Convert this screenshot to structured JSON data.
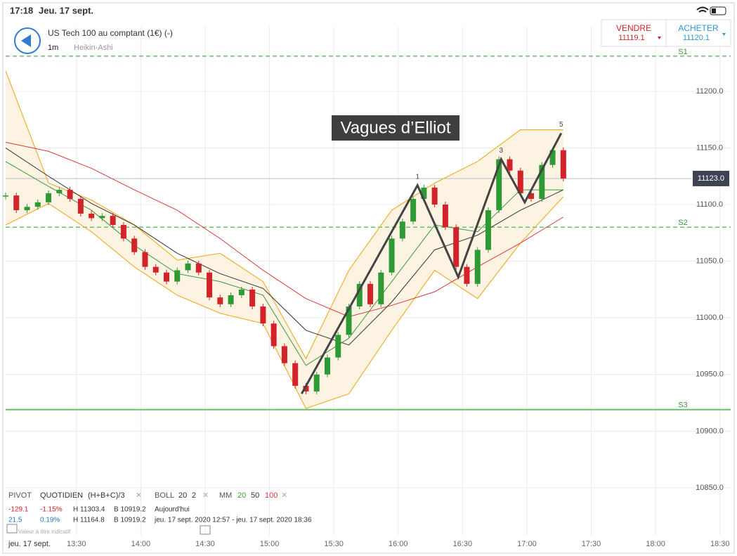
{
  "status_bar": {
    "time": "17:18",
    "date": "Jeu. 17 sept."
  },
  "header": {
    "instrument": "US Tech 100 au comptant (1€) (-)",
    "interval": "1m",
    "chart_style": "Heikin-Ashi",
    "sell_label": "VENDRE",
    "sell_price": "11119.1",
    "buy_label": "ACHETER",
    "buy_price": "11120.1"
  },
  "legend_panel": {
    "pivot": "PIVOT",
    "pivot_mode": "QUOTIDIEN",
    "pivot_formula": "(H+B+C)/3",
    "boll": "BOLL",
    "boll_period": "20",
    "boll_dev": "2",
    "mm": "MM",
    "mm_fast": "20",
    "mm_mid": "50",
    "mm_slow": "100",
    "rows": [
      [
        "-129.1",
        "-1.15%",
        "H 11303.4",
        "B 10919.2",
        "Aujourd'hui"
      ],
      [
        "21.5",
        "0.19%",
        "H 11164.8",
        "B 10919.2",
        "jeu. 17 sept. 2020 12:57 - jeu. 17 sept. 2020 18:36"
      ]
    ],
    "note": "Valeur à titre indicatif",
    "day_label": "jeu. 17 sept."
  },
  "chart_data": {
    "type": "candlestick",
    "title": "Vagues d’Elliot",
    "x": [
      777,
      782,
      787,
      792,
      797,
      802,
      807,
      812,
      817,
      822,
      827,
      832,
      837,
      842,
      847,
      852,
      857,
      862,
      867,
      872,
      877,
      882,
      887,
      892,
      897,
      902,
      907,
      912,
      917,
      922,
      927,
      932,
      937,
      942,
      947,
      952,
      957,
      962,
      967,
      972,
      977,
      982,
      987,
      992,
      997,
      1002,
      1007,
      1012,
      1017,
      1022,
      1027,
      1032,
      1037
    ],
    "values": [
      11108,
      11095,
      11098,
      11102,
      11110,
      11113,
      11105,
      11092,
      11088,
      11090,
      11082,
      11070,
      11058,
      11045,
      11040,
      11032,
      11042,
      11048,
      11040,
      11018,
      11012,
      11020,
      11025,
      11010,
      10995,
      10975,
      10960,
      10940,
      10935,
      10950,
      10965,
      10985,
      11010,
      11030,
      11012,
      11040,
      11070,
      11085,
      11105,
      11115,
      11100,
      11080,
      11045,
      11030,
      11060,
      11095,
      11140,
      11130,
      11110,
      11105,
      11135,
      11148,
      11123
    ],
    "up_color": "#2e9a35",
    "down_color": "#d3232a",
    "indicators": {
      "x": [
        777,
        797,
        817,
        837,
        857,
        877,
        897,
        917,
        937,
        957,
        977,
        997,
        1017,
        1037
      ],
      "boll_upper": [
        11218,
        11119,
        11104,
        11082,
        11051,
        11057,
        11032,
        10964,
        11042,
        11095,
        11119,
        11138,
        11166,
        11166
      ],
      "boll_lower": [
        11082,
        11101,
        11076,
        11045,
        11020,
        11004,
        10995,
        10920,
        10933,
        10989,
        11042,
        11017,
        11066,
        11107
      ],
      "mm20": [
        11138,
        11116,
        11095,
        11064,
        11039,
        11032,
        11020,
        10958,
        10982,
        11032,
        11082,
        11076,
        11113,
        11113
      ],
      "mm50": [
        11150,
        11125,
        11101,
        11082,
        11057,
        11039,
        11026,
        10989,
        10976,
        11014,
        11060,
        11073,
        11095,
        11113
      ],
      "mm100": [
        11155,
        11147,
        11132,
        11113,
        11095,
        11070,
        11042,
        11017,
        11001,
        11011,
        11023,
        11045,
        11066,
        11089
      ],
      "boll_color": "#f0b030",
      "mm20_color": "#3a9a3a",
      "mm50_color": "#333333",
      "mm100_color": "#d83a3a"
    },
    "waves": {
      "x": [
        915,
        969,
        988,
        1008,
        1019,
        1036
      ],
      "values": [
        10933,
        11117,
        11036,
        11140,
        11102,
        11163
      ],
      "labels": [
        null,
        "1",
        null,
        "3",
        null,
        "5"
      ]
    },
    "pivots": [
      {
        "name": "S1",
        "value": 11231,
        "dashed": true
      },
      {
        "name": "S2",
        "value": 11080,
        "dashed": true
      },
      {
        "name": "S3",
        "value": 10919,
        "dashed": false
      }
    ],
    "last_price": {
      "value": 11123,
      "label": "11123.0"
    },
    "xlim": [
      777,
      1115
    ],
    "ylim": [
      10809,
      11257
    ],
    "xticks": [
      {
        "value": 810,
        "label": "13:30"
      },
      {
        "value": 840,
        "label": "14:00"
      },
      {
        "value": 870,
        "label": "14:30"
      },
      {
        "value": 900,
        "label": "15:00"
      },
      {
        "value": 930,
        "label": "15:30"
      },
      {
        "value": 960,
        "label": "16:00"
      },
      {
        "value": 990,
        "label": "16:30"
      },
      {
        "value": 1020,
        "label": "17:00"
      },
      {
        "value": 1050,
        "label": "17:30"
      },
      {
        "value": 1080,
        "label": "18:00"
      },
      {
        "value": 1110,
        "label": "18:30"
      }
    ],
    "yticks": [
      {
        "value": 10850,
        "label": "10850.0"
      },
      {
        "value": 10900,
        "label": "10900.0"
      },
      {
        "value": 10950,
        "label": "10950.0"
      },
      {
        "value": 11000,
        "label": "11000.0"
      },
      {
        "value": 11050,
        "label": "11050.0"
      },
      {
        "value": 11100,
        "label": "11100.0"
      },
      {
        "value": 11150,
        "label": "11150.0"
      },
      {
        "value": 11200,
        "label": "11200.0"
      }
    ],
    "grid": true
  }
}
